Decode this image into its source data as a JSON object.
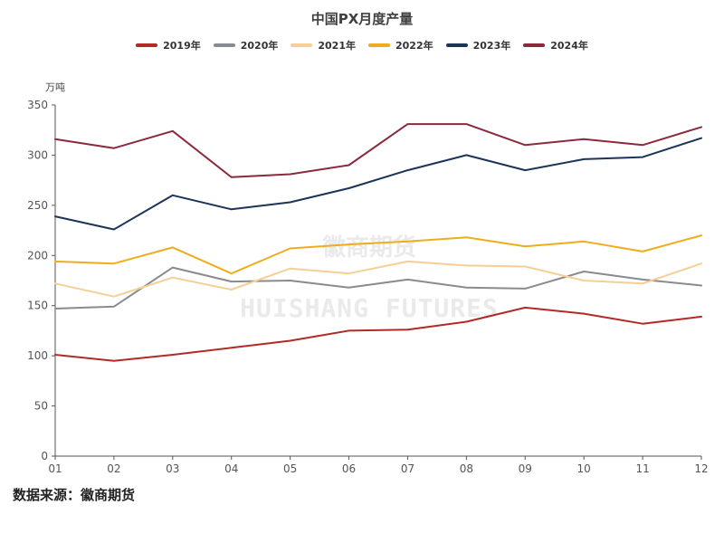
{
  "chart_data": {
    "type": "line",
    "title": "中国PX月度产量",
    "ylabel": "万吨",
    "xlabel": "",
    "ylim": [
      0,
      350
    ],
    "yticks": [
      0,
      50,
      100,
      150,
      200,
      250,
      300,
      350
    ],
    "categories": [
      "01",
      "02",
      "03",
      "04",
      "05",
      "06",
      "07",
      "08",
      "09",
      "10",
      "11",
      "12"
    ],
    "series": [
      {
        "name": "2019年",
        "color": "#b22a25",
        "values": [
          101,
          95,
          101,
          108,
          115,
          125,
          126,
          134,
          148,
          142,
          132,
          139
        ]
      },
      {
        "name": "2020年",
        "color": "#898a92",
        "values": [
          147,
          149,
          188,
          174,
          175,
          168,
          176,
          168,
          167,
          184,
          176,
          170
        ]
      },
      {
        "name": "2021年",
        "color": "#f5cf94",
        "values": [
          172,
          159,
          178,
          166,
          187,
          182,
          194,
          190,
          189,
          175,
          172,
          192
        ]
      },
      {
        "name": "2022年",
        "color": "#efad1d",
        "values": [
          194,
          192,
          208,
          182,
          207,
          211,
          214,
          218,
          209,
          214,
          204,
          220
        ]
      },
      {
        "name": "2023年",
        "color": "#1c3459",
        "values": [
          239,
          226,
          260,
          246,
          253,
          267,
          285,
          300,
          285,
          296,
          298,
          317
        ]
      },
      {
        "name": "2024年",
        "color": "#8b2a3c",
        "values": [
          316,
          307,
          324,
          278,
          281,
          290,
          331,
          331,
          310,
          316,
          310,
          328
        ]
      }
    ],
    "legend_position": "top"
  },
  "watermark": {
    "cn": "徽商期货",
    "en": "HUISHANG FUTURES"
  },
  "source_text": "数据来源：徽商期货"
}
